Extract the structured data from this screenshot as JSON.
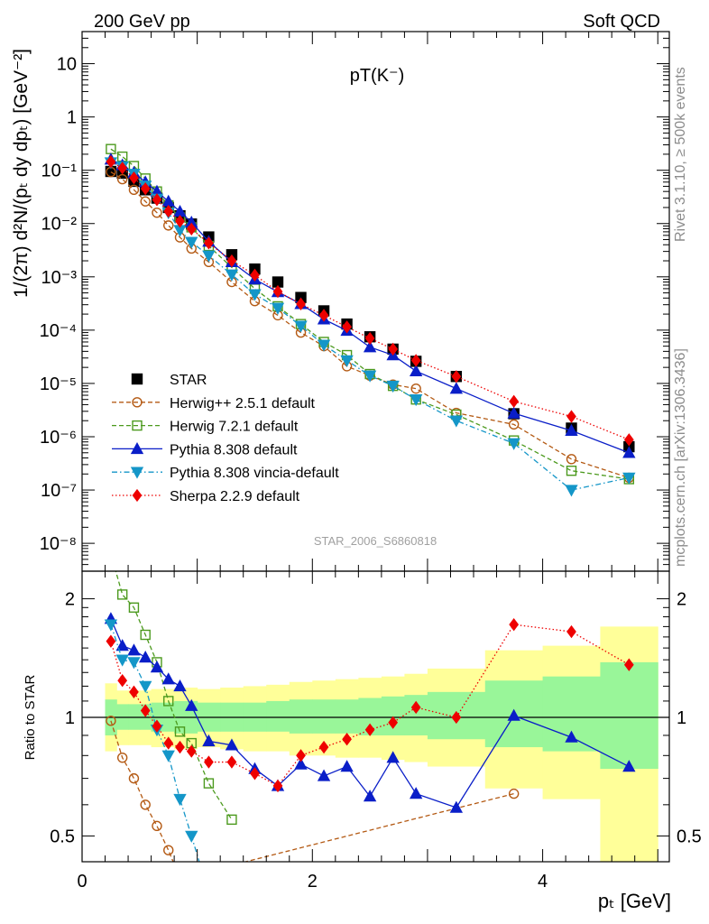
{
  "header": {
    "left": "200 GeV pp",
    "right": "Soft QCD"
  },
  "side": {
    "rivet": "Rivet 3.1.10, ≥ 500k events",
    "mcplots": "mcplots.cern.ch [arXiv:1306.3436]"
  },
  "labels": {
    "plot_title": "pT(K⁻)",
    "ylabel": "1/(2π) d²N/(pₜ dy dpₜ) [GeV⁻²]",
    "ratio_ylabel": "Ratio to STAR",
    "xlabel": "pₜ [GeV]",
    "analysis": "STAR_2006_S6860818"
  },
  "chart_data": [
    {
      "type": "scatter",
      "panel": "main",
      "yscale": "log",
      "xlim": [
        0,
        5.1
      ],
      "ylim": [
        3e-09,
        40
      ],
      "x_ticks": [
        0,
        2,
        4
      ],
      "y_ticks": [
        {
          "v": 1e-08,
          "label": "10⁻⁸"
        },
        {
          "v": 1e-07,
          "label": "10⁻⁷"
        },
        {
          "v": 1e-06,
          "label": "10⁻⁶"
        },
        {
          "v": 1e-05,
          "label": "10⁻⁵"
        },
        {
          "v": 0.0001,
          "label": "10⁻⁴"
        },
        {
          "v": 0.001,
          "label": "10⁻³"
        },
        {
          "v": 0.01,
          "label": "10⁻²"
        },
        {
          "v": 0.1,
          "label": "10⁻¹"
        },
        {
          "v": 1,
          "label": "1"
        },
        {
          "v": 10,
          "label": "10"
        }
      ],
      "legend": "bottom-left",
      "series": [
        {
          "name": "STAR",
          "color": "#000000",
          "marker": "square",
          "filled": true,
          "dash": "",
          "line": false,
          "x": [
            0.25,
            0.35,
            0.45,
            0.55,
            0.65,
            0.75,
            0.85,
            0.95,
            1.1,
            1.3,
            1.5,
            1.7,
            1.9,
            2.1,
            2.3,
            2.5,
            2.7,
            2.9,
            3.25,
            3.75,
            4.25,
            4.75
          ],
          "y": [
            0.095,
            0.088,
            0.062,
            0.043,
            0.03,
            0.02,
            0.014,
            0.0098,
            0.0056,
            0.0026,
            0.0014,
            0.0008,
            0.00041,
            0.00023,
            0.00013,
            7.5e-05,
            4.4e-05,
            2.6e-05,
            1.35e-05,
            2.7e-06,
            1.45e-06,
            6.5e-07
          ]
        },
        {
          "name": "Herwig++ 2.5.1 default",
          "color": "#b45a14",
          "marker": "circle",
          "filled": false,
          "dash": "5,3",
          "line": true,
          "x": [
            0.25,
            0.35,
            0.45,
            0.55,
            0.65,
            0.75,
            0.85,
            0.95,
            1.1,
            1.3,
            1.5,
            1.7,
            1.9,
            2.1,
            2.3,
            2.5,
            2.7,
            2.9,
            3.25,
            3.75,
            4.25,
            4.75
          ],
          "y": [
            0.093,
            0.068,
            0.043,
            0.026,
            0.016,
            0.0092,
            0.0055,
            0.0034,
            0.0019,
            0.0008,
            0.00035,
            0.00019,
            9e-05,
            5e-05,
            2.1e-05,
            1.4e-05,
            9.5e-06,
            8e-06,
            2.8e-06,
            1.7e-06,
            3.8e-07,
            1.7e-07
          ]
        },
        {
          "name": "Herwig 7.2.1 default",
          "color": "#4c9a1e",
          "marker": "square",
          "filled": false,
          "dash": "5,3",
          "line": true,
          "x": [
            0.25,
            0.35,
            0.45,
            0.55,
            0.65,
            0.75,
            0.85,
            0.95,
            1.1,
            1.3,
            1.5,
            1.7,
            1.9,
            2.1,
            2.3,
            2.5,
            2.7,
            2.9,
            3.25,
            3.75,
            4.25,
            4.75
          ],
          "y": [
            0.25,
            0.18,
            0.12,
            0.07,
            0.04,
            0.022,
            0.013,
            0.0085,
            0.0038,
            0.0015,
            0.0006,
            0.00028,
            0.00013,
            6e-05,
            3.4e-05,
            1.5e-05,
            9e-06,
            5e-06,
            2.6e-06,
            8.5e-07,
            2.3e-07,
            1.6e-07
          ]
        },
        {
          "name": "Pythia 8.308 default",
          "color": "#0a1ec8",
          "marker": "triangle",
          "filled": true,
          "dash": "",
          "line": true,
          "x": [
            0.25,
            0.35,
            0.45,
            0.55,
            0.65,
            0.75,
            0.85,
            0.95,
            1.1,
            1.3,
            1.5,
            1.7,
            1.9,
            2.1,
            2.3,
            2.5,
            2.7,
            2.9,
            3.25,
            3.75,
            4.25,
            4.75
          ],
          "y": [
            0.16,
            0.125,
            0.09,
            0.06,
            0.04,
            0.026,
            0.0168,
            0.0105,
            0.0046,
            0.0019,
            0.0009,
            0.00052,
            0.00031,
            0.00016,
            9.8e-05,
            4.8e-05,
            3.4e-05,
            1.7e-05,
            8e-06,
            2.75e-06,
            1.3e-06,
            5e-07
          ]
        },
        {
          "name": "Pythia 8.308 vincia-default",
          "color": "#1496c8",
          "marker": "triangle-down",
          "filled": true,
          "dash": "6,3,1.5,3",
          "line": true,
          "x": [
            0.25,
            0.35,
            0.45,
            0.55,
            0.65,
            0.75,
            0.85,
            0.95,
            1.1,
            1.3,
            1.5,
            1.7,
            1.9,
            2.1,
            2.3,
            2.5,
            2.7,
            2.9,
            3.25,
            3.75,
            4.25,
            4.75
          ],
          "y": [
            0.14,
            0.118,
            0.085,
            0.051,
            0.029,
            0.016,
            0.0075,
            0.0045,
            0.0025,
            0.0011,
            0.00047,
            0.00026,
            0.00012,
            5.3e-05,
            2.7e-05,
            1.4e-05,
            9e-06,
            5e-06,
            2e-06,
            7.5e-07,
            1e-07,
            1.7e-07
          ]
        },
        {
          "name": "Sherpa 2.2.9 default",
          "color": "#ee0000",
          "marker": "diamond",
          "filled": true,
          "dash": "1.5,2.5",
          "line": true,
          "x": [
            0.25,
            0.35,
            0.45,
            0.55,
            0.65,
            0.75,
            0.85,
            0.95,
            1.1,
            1.3,
            1.5,
            1.7,
            1.9,
            2.1,
            2.3,
            2.5,
            2.7,
            2.9,
            3.25,
            3.75,
            4.25,
            4.75
          ],
          "y": [
            0.145,
            0.11,
            0.072,
            0.045,
            0.028,
            0.017,
            0.011,
            0.0079,
            0.0043,
            0.002,
            0.00108,
            0.00053,
            0.00031,
            0.00019,
            0.000115,
            7e-05,
            4.4e-05,
            2.7e-05,
            1.35e-05,
            4.6e-06,
            2.4e-06,
            8.8e-07
          ]
        }
      ]
    },
    {
      "type": "line",
      "panel": "ratio",
      "yscale": "log",
      "xlim": [
        0,
        5.1
      ],
      "ylim": [
        0.43,
        2.35
      ],
      "x_ticks": [
        0,
        2,
        4
      ],
      "y_ticks": [
        {
          "v": 0.5,
          "label": "0.5"
        },
        {
          "v": 1,
          "label": "1"
        },
        {
          "v": 2,
          "label": "2"
        }
      ],
      "bands": {
        "edges": [
          0.2,
          0.3,
          0.4,
          0.5,
          0.6,
          0.7,
          0.8,
          0.9,
          1.0,
          1.2,
          1.4,
          1.6,
          1.8,
          2.0,
          2.2,
          2.4,
          2.6,
          2.8,
          3.0,
          3.5,
          4.0,
          4.5,
          5.0
        ],
        "inner_lo": [
          0.9,
          0.93,
          0.93,
          0.93,
          0.92,
          0.92,
          0.91,
          0.91,
          0.92,
          0.92,
          0.92,
          0.92,
          0.91,
          0.91,
          0.91,
          0.9,
          0.9,
          0.9,
          0.88,
          0.84,
          0.82,
          0.74
        ],
        "inner_hi": [
          1.11,
          1.08,
          1.08,
          1.08,
          1.09,
          1.09,
          1.1,
          1.1,
          1.09,
          1.09,
          1.09,
          1.1,
          1.11,
          1.11,
          1.11,
          1.12,
          1.13,
          1.14,
          1.16,
          1.24,
          1.27,
          1.38
        ],
        "outer_lo": [
          0.82,
          0.85,
          0.85,
          0.85,
          0.84,
          0.84,
          0.83,
          0.83,
          0.84,
          0.83,
          0.82,
          0.82,
          0.8,
          0.8,
          0.79,
          0.79,
          0.78,
          0.77,
          0.75,
          0.66,
          0.62,
          0.4
        ],
        "outer_hi": [
          1.22,
          1.17,
          1.17,
          1.17,
          1.18,
          1.18,
          1.19,
          1.19,
          1.18,
          1.19,
          1.2,
          1.21,
          1.23,
          1.24,
          1.25,
          1.26,
          1.27,
          1.29,
          1.33,
          1.48,
          1.52,
          1.7
        ],
        "inner_color": "#99f699",
        "outer_color": "#ffff99"
      },
      "series": [
        {
          "name": "Herwig++ 2.5.1 default",
          "x": [
            0.25,
            0.35,
            0.45,
            0.55,
            0.65,
            0.75,
            0.85,
            3.75
          ],
          "y": [
            0.98,
            0.79,
            0.7,
            0.6,
            0.53,
            0.46,
            0.39,
            0.64
          ]
        },
        {
          "name": "Herwig 7.2.1 default",
          "x": [
            0.25,
            0.35,
            0.45,
            0.55,
            0.65,
            0.75,
            0.85,
            0.95,
            1.1,
            1.3
          ],
          "y": [
            2.6,
            2.05,
            1.9,
            1.62,
            1.38,
            1.1,
            0.92,
            0.86,
            0.68,
            0.55
          ]
        },
        {
          "name": "Pythia 8.308 default",
          "x": [
            0.25,
            0.35,
            0.45,
            0.55,
            0.65,
            0.75,
            0.85,
            0.95,
            1.1,
            1.3,
            1.5,
            1.7,
            1.9,
            2.1,
            2.3,
            2.5,
            2.7,
            2.9,
            3.25,
            3.75,
            4.25,
            4.75
          ],
          "y": [
            1.78,
            1.52,
            1.48,
            1.42,
            1.34,
            1.25,
            1.2,
            1.07,
            0.87,
            0.85,
            0.74,
            0.67,
            0.76,
            0.71,
            0.75,
            0.63,
            0.79,
            0.64,
            0.59,
            1.01,
            0.89,
            0.75
          ]
        },
        {
          "name": "Pythia 8.308 vincia-default",
          "x": [
            0.25,
            0.35,
            0.45,
            0.55,
            0.65,
            0.75,
            0.85,
            0.95,
            1.05
          ],
          "y": [
            1.72,
            1.4,
            1.38,
            1.2,
            0.93,
            0.8,
            0.62,
            0.5,
            0.4
          ]
        },
        {
          "name": "Sherpa 2.2.9 default",
          "x": [
            0.25,
            0.35,
            0.45,
            0.55,
            0.65,
            0.75,
            0.85,
            0.95,
            1.1,
            1.3,
            1.5,
            1.7,
            1.9,
            2.1,
            2.3,
            2.5,
            2.7,
            2.9,
            3.25,
            3.75,
            4.25,
            4.75
          ],
          "y": [
            1.56,
            1.24,
            1.16,
            1.04,
            0.95,
            0.86,
            0.84,
            0.82,
            0.77,
            0.77,
            0.72,
            0.67,
            0.8,
            0.84,
            0.88,
            0.93,
            0.97,
            1.06,
            1.0,
            1.72,
            1.65,
            1.36
          ]
        }
      ]
    }
  ]
}
